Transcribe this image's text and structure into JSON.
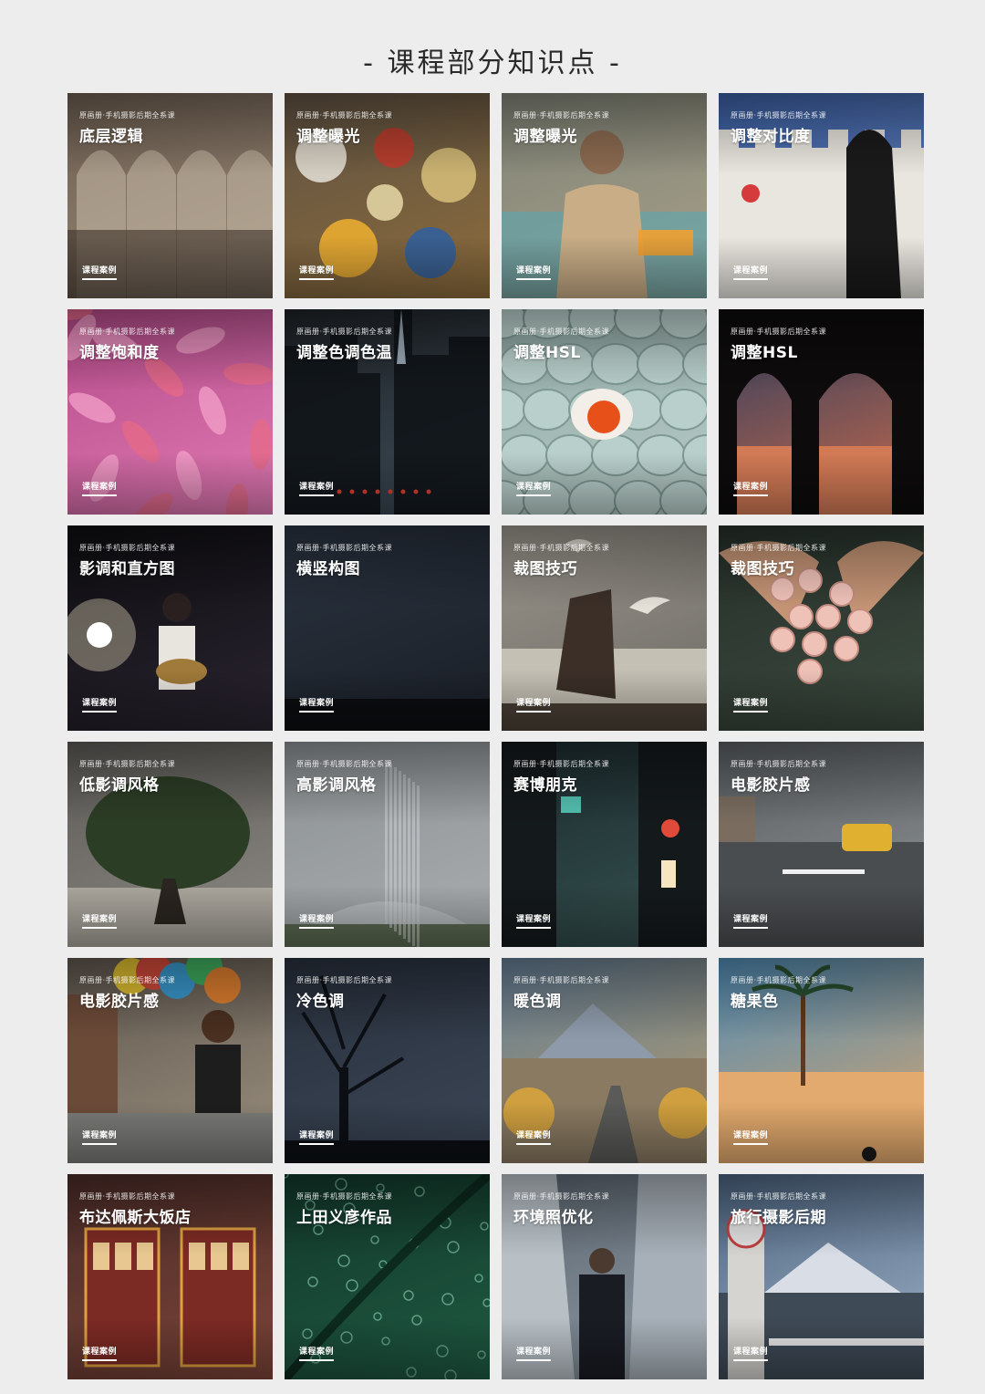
{
  "page_title": "- 课程部分知识点 -",
  "series_label": "原画册·手机摄影后期全系课",
  "tag_label": "课程案例",
  "cards": [
    {
      "title": "底层逻辑",
      "scene": "arches",
      "colors": [
        "#6d5e50",
        "#9b8b7a"
      ]
    },
    {
      "title": "调整曝光",
      "scene": "food",
      "colors": [
        "#5e5142",
        "#8c6c3c"
      ]
    },
    {
      "title": "调整曝光",
      "scene": "man",
      "colors": [
        "#7f8376",
        "#a9a08a"
      ]
    },
    {
      "title": "调整对比度",
      "scene": "wall",
      "colors": [
        "#3b5fa3",
        "#6c8ac4"
      ]
    },
    {
      "title": "调整饱和度",
      "scene": "fish",
      "colors": [
        "#b24a88",
        "#e27ab4"
      ]
    },
    {
      "title": "调整色调色温",
      "scene": "city",
      "colors": [
        "#1e2226",
        "#3d4c58"
      ]
    },
    {
      "title": "调整HSL",
      "scene": "eggs",
      "colors": [
        "#8fa7a3",
        "#b8ccc7"
      ]
    },
    {
      "title": "调整HSL",
      "scene": "silhouette",
      "colors": [
        "#2a3c5e",
        "#c96a4b"
      ]
    },
    {
      "title": "影调和直方图",
      "scene": "concert",
      "colors": [
        "#0d0d10",
        "#2a2430"
      ]
    },
    {
      "title": "横竖构图",
      "scene": "dark",
      "colors": [
        "#2a3340",
        "#1a1f26"
      ]
    },
    {
      "title": "裁图技巧",
      "scene": "seagull",
      "colors": [
        "#9a958c",
        "#6c6a64"
      ]
    },
    {
      "title": "裁图技巧",
      "scene": "roses",
      "colors": [
        "#26302a",
        "#3c4a3e"
      ]
    },
    {
      "title": "低影调风格",
      "scene": "tree",
      "colors": [
        "#5c5a56",
        "#8d8a84"
      ]
    },
    {
      "title": "高影调风格",
      "scene": "fog",
      "colors": [
        "#8c9194",
        "#a9adaf"
      ]
    },
    {
      "title": "赛博朋克",
      "scene": "street",
      "colors": [
        "#1c2a2e",
        "#35524f"
      ]
    },
    {
      "title": "电影胶片感",
      "scene": "road",
      "colors": [
        "#5a5e61",
        "#8e9396"
      ]
    },
    {
      "title": "电影胶片感",
      "scene": "balloons",
      "colors": [
        "#5f574e",
        "#9a8f7e"
      ]
    },
    {
      "title": "冷色调",
      "scene": "bare-tree",
      "colors": [
        "#28303c",
        "#3b4656"
      ]
    },
    {
      "title": "暖色调",
      "scene": "mountain-city",
      "colors": [
        "#627c94",
        "#b49c6c"
      ]
    },
    {
      "title": "糖果色",
      "scene": "desert",
      "colors": [
        "#4f8cb6",
        "#d7a46c"
      ]
    },
    {
      "title": "布达佩斯大饭店",
      "scene": "trams",
      "colors": [
        "#4a2c28",
        "#7c4438"
      ]
    },
    {
      "title": "上田义彦作品",
      "scene": "leaf",
      "colors": [
        "#12382a",
        "#1f5a42"
      ]
    },
    {
      "title": "环境照优化",
      "scene": "towers",
      "colors": [
        "#5c6670",
        "#8d98a2"
      ]
    },
    {
      "title": "旅行摄影后期",
      "scene": "fuji",
      "colors": [
        "#4c6480",
        "#9fb2c6"
      ]
    }
  ]
}
